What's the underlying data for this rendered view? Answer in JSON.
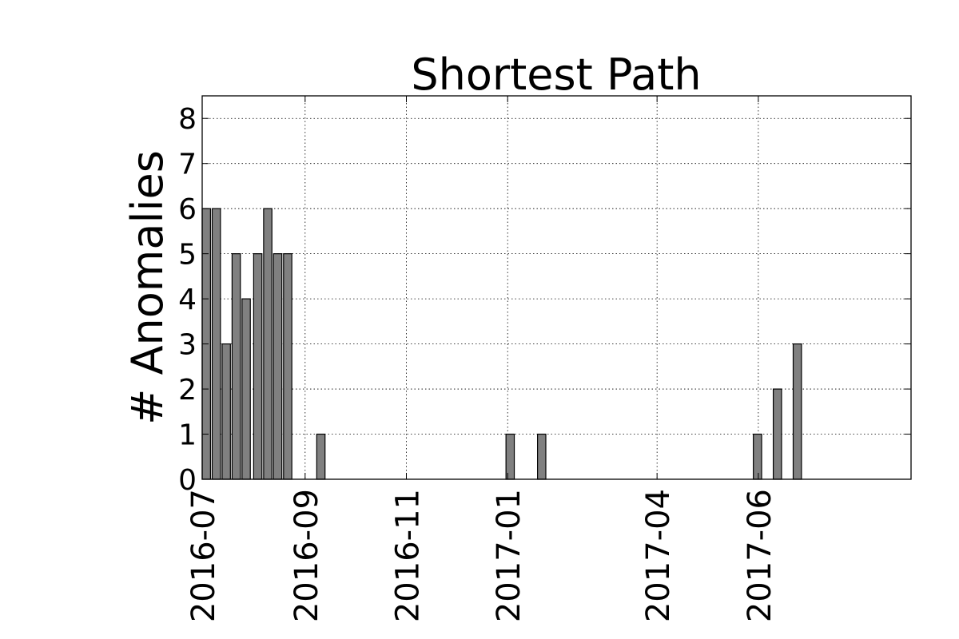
{
  "chart_data": {
    "type": "bar",
    "title": "Shortest Path",
    "xlabel": "",
    "ylabel": "# Anomalies",
    "x_is_date": true,
    "xlim": [
      "2016-07-01",
      "2017-09-01"
    ],
    "ylim": [
      0,
      8.5
    ],
    "yticks": [
      0,
      1,
      2,
      3,
      4,
      5,
      6,
      7,
      8
    ],
    "xticks": [
      {
        "date": "2016-07-01",
        "label": "2016-07"
      },
      {
        "date": "2016-09-01",
        "label": "2016-09"
      },
      {
        "date": "2016-11-01",
        "label": "2016-11"
      },
      {
        "date": "2017-01-01",
        "label": "2017-01"
      },
      {
        "date": "2017-04-01",
        "label": "2017-04"
      },
      {
        "date": "2017-06-01",
        "label": "2017-06"
      }
    ],
    "grid": true,
    "bar_color": "#808080",
    "bar_edge_color": "#000000",
    "series": [
      {
        "x": [
          "2016-07-01",
          "2016-07-07",
          "2016-07-13",
          "2016-07-19",
          "2016-07-25",
          "2016-08-01",
          "2016-08-07",
          "2016-08-13",
          "2016-08-19",
          "2016-09-08",
          "2016-12-31",
          "2017-01-19",
          "2017-05-29",
          "2017-06-10",
          "2017-06-22"
        ],
        "values": [
          6,
          6,
          3,
          5,
          4,
          5,
          6,
          5,
          5,
          1,
          1,
          1,
          1,
          2,
          3
        ]
      }
    ]
  }
}
